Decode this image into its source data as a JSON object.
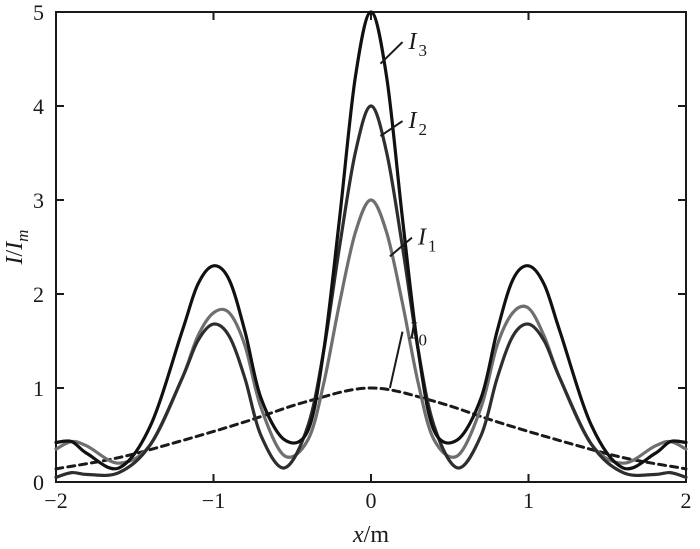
{
  "chart_data": {
    "type": "line",
    "xlabel": {
      "italic": "x",
      "rest": "/m"
    },
    "ylabel": {
      "italic1": "I",
      "slash": "/",
      "italic2": "I",
      "sub": "m"
    },
    "xlim": [
      -2,
      2
    ],
    "ylim": [
      0,
      5
    ],
    "xticks": [
      -2,
      -1,
      0,
      1,
      2
    ],
    "xtick_labels": [
      "−2",
      "−1",
      "0",
      "1",
      "2"
    ],
    "yticks": [
      0,
      1,
      2,
      3,
      4,
      5
    ],
    "ytick_labels": [
      "0",
      "1",
      "2",
      "3",
      "4",
      "5"
    ],
    "grid": false,
    "series": [
      {
        "name": "I0",
        "label_main": "I",
        "label_sub": "0",
        "style": "dashed",
        "color": "#1a1a1a",
        "x": [
          -2,
          -1.6,
          -1.2,
          -0.8,
          -0.4,
          0,
          0.4,
          0.8,
          1.2,
          1.6,
          2
        ],
        "y": [
          0.14,
          0.26,
          0.44,
          0.64,
          0.86,
          1.0,
          0.86,
          0.64,
          0.44,
          0.26,
          0.14
        ]
      },
      {
        "name": "I1",
        "label_main": "I",
        "label_sub": "1",
        "style": "solid",
        "color": "#6f6f6f",
        "x": [
          -2,
          -1.9,
          -1.8,
          -1.6,
          -1.4,
          -1.2,
          -1.1,
          -1.0,
          -0.9,
          -0.8,
          -0.7,
          -0.55,
          -0.4,
          -0.3,
          -0.2,
          -0.1,
          0,
          0.1,
          0.2,
          0.3,
          0.4,
          0.55,
          0.7,
          0.8,
          0.9,
          1.0,
          1.1,
          1.2,
          1.4,
          1.6,
          1.8,
          1.9,
          2
        ],
        "y": [
          0.35,
          0.43,
          0.38,
          0.2,
          0.4,
          1.1,
          1.55,
          1.8,
          1.8,
          1.45,
          0.8,
          0.28,
          0.45,
          1.05,
          1.9,
          2.65,
          3.0,
          2.65,
          1.9,
          1.05,
          0.45,
          0.28,
          0.8,
          1.45,
          1.8,
          1.85,
          1.55,
          1.1,
          0.4,
          0.2,
          0.38,
          0.43,
          0.35
        ]
      },
      {
        "name": "I2",
        "label_main": "I",
        "label_sub": "2",
        "style": "solid",
        "color": "#2e2e2e",
        "x": [
          -2,
          -1.9,
          -1.8,
          -1.6,
          -1.4,
          -1.2,
          -1.1,
          -1.0,
          -0.9,
          -0.8,
          -0.7,
          -0.55,
          -0.4,
          -0.3,
          -0.2,
          -0.1,
          0,
          0.1,
          0.2,
          0.3,
          0.4,
          0.55,
          0.7,
          0.8,
          0.9,
          1.0,
          1.1,
          1.2,
          1.4,
          1.6,
          1.8,
          1.9,
          2
        ],
        "y": [
          0.05,
          0.1,
          0.08,
          0.1,
          0.4,
          1.1,
          1.5,
          1.68,
          1.55,
          1.1,
          0.5,
          0.15,
          0.6,
          1.4,
          2.5,
          3.5,
          4.0,
          3.5,
          2.5,
          1.4,
          0.6,
          0.15,
          0.5,
          1.1,
          1.55,
          1.68,
          1.5,
          1.1,
          0.4,
          0.1,
          0.08,
          0.1,
          0.05
        ]
      },
      {
        "name": "I3",
        "label_main": "I",
        "label_sub": "3",
        "style": "solid",
        "color": "#111111",
        "x": [
          -2,
          -1.9,
          -1.8,
          -1.6,
          -1.4,
          -1.2,
          -1.1,
          -1.0,
          -0.9,
          -0.8,
          -0.7,
          -0.55,
          -0.4,
          -0.3,
          -0.2,
          -0.1,
          0,
          0.1,
          0.2,
          0.3,
          0.4,
          0.55,
          0.7,
          0.8,
          0.9,
          1.0,
          1.1,
          1.2,
          1.4,
          1.6,
          1.8,
          1.9,
          2
        ],
        "y": [
          0.42,
          0.43,
          0.3,
          0.15,
          0.6,
          1.6,
          2.1,
          2.3,
          2.15,
          1.6,
          0.9,
          0.45,
          0.55,
          1.4,
          2.8,
          4.3,
          5.0,
          4.3,
          2.8,
          1.4,
          0.55,
          0.45,
          0.9,
          1.6,
          2.15,
          2.3,
          2.1,
          1.6,
          0.6,
          0.15,
          0.3,
          0.43,
          0.42
        ]
      }
    ],
    "annotations": [
      {
        "series": "I3",
        "point_x": 0.06,
        "point_y": 4.45,
        "text_x": 0.2,
        "text_y": 4.68
      },
      {
        "series": "I2",
        "point_x": 0.06,
        "point_y": 3.68,
        "text_x": 0.2,
        "text_y": 3.84
      },
      {
        "series": "I1",
        "point_x": 0.12,
        "point_y": 2.4,
        "text_x": 0.26,
        "text_y": 2.6
      },
      {
        "series": "I0",
        "point_x": 0.12,
        "point_y": 1.0,
        "text_x": 0.2,
        "text_y": 1.6
      }
    ]
  }
}
